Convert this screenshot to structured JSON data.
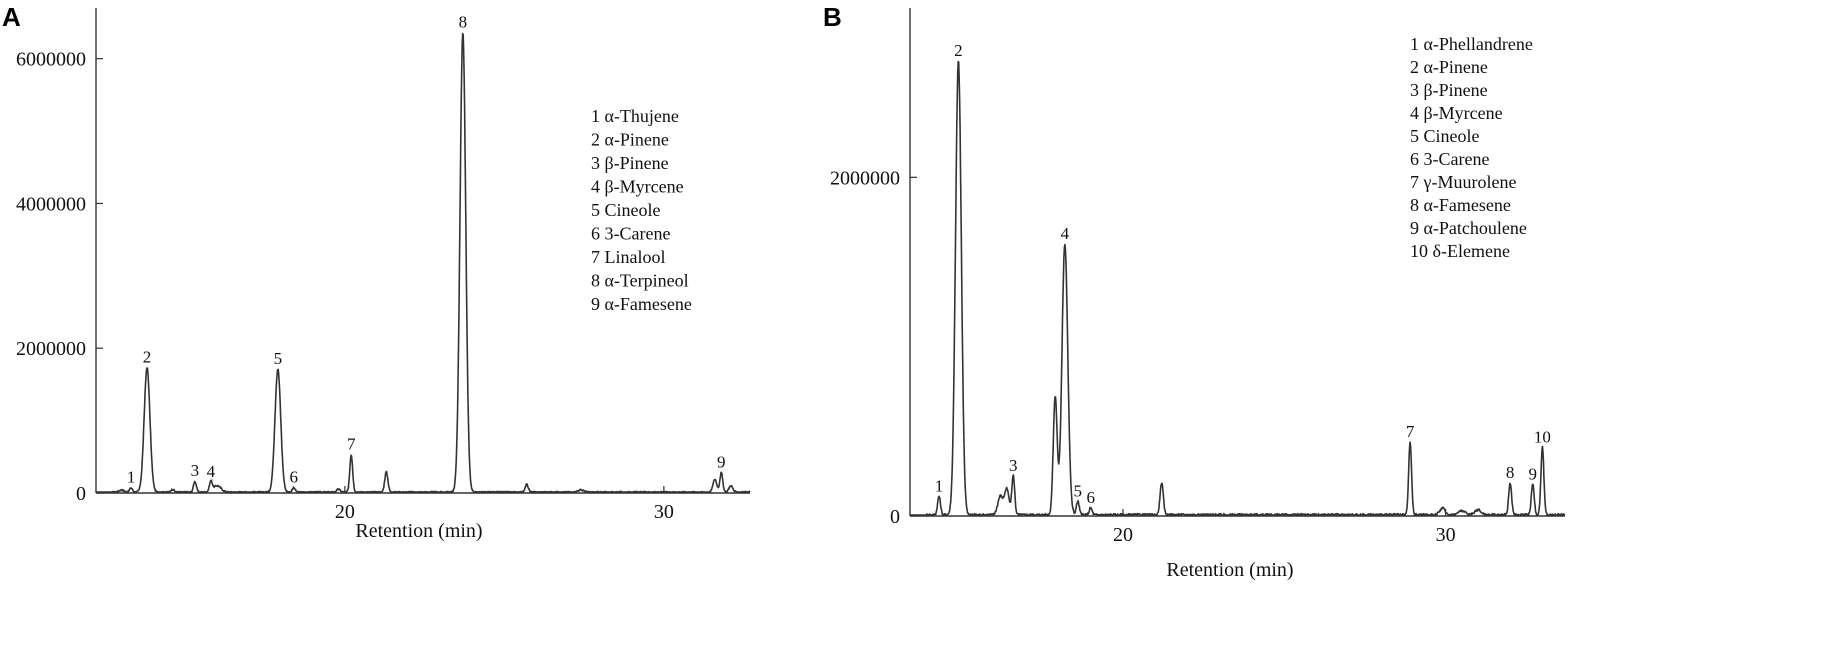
{
  "chart_data": [
    {
      "panel_letter": "A",
      "type": "line",
      "xlabel": "Retention (min)",
      "ylabel": "",
      "xlim": [
        12.2,
        32.7
      ],
      "ylim": [
        0,
        6700000
      ],
      "x_ticks": [
        20,
        30
      ],
      "y_ticks": [
        0,
        2000000,
        4000000,
        6000000
      ],
      "y_tick_labels": [
        "0",
        "2000000",
        "4000000",
        "6000000"
      ],
      "legend_placement": "top-right",
      "legend": [
        "1 α-Thujene",
        "2 α-Pinene",
        "3 β-Pinene",
        "4 β-Myrcene",
        "5 Cineole",
        "6 3-Carene",
        "7 Linalool",
        "8 α-Terpineol",
        "9 α-Famesene"
      ],
      "grid": false,
      "peaks": [
        {
          "label": "1",
          "x": 13.3,
          "y": 60000
        },
        {
          "label": "2",
          "x": 13.8,
          "y": 1720000
        },
        {
          "label": "3",
          "x": 15.3,
          "y": 150000
        },
        {
          "label": "4",
          "x": 15.8,
          "y": 140000
        },
        {
          "label": "5",
          "x": 17.9,
          "y": 1700000
        },
        {
          "label": "6",
          "x": 18.4,
          "y": 60000
        },
        {
          "label": "7",
          "x": 20.2,
          "y": 520000
        },
        {
          "label": "8",
          "x": 23.7,
          "y": 6350000
        },
        {
          "label": "9",
          "x": 31.8,
          "y": 270000
        }
      ]
    },
    {
      "panel_letter": "B",
      "type": "line",
      "xlabel": "Retention (min)",
      "ylabel": "",
      "xlim": [
        13.4,
        33.7
      ],
      "ylim": [
        0,
        3000000
      ],
      "x_ticks": [
        20,
        30
      ],
      "y_ticks": [
        0,
        2000000
      ],
      "y_tick_labels": [
        "0",
        "2000000"
      ],
      "legend_placement": "top-right",
      "legend": [
        "1 α-Phellandrene",
        "2 α-Pinene",
        "3 β-Pinene",
        "4 β-Myrcene",
        "5 Cineole",
        "6 3-Carene",
        "7 γ-Muurolene",
        "8 α-Famesene",
        "9 α-Patchoulene",
        "10 δ-Elemene"
      ],
      "grid": false,
      "peaks": [
        {
          "label": "1",
          "x": 14.3,
          "y": 110000
        },
        {
          "label": "2",
          "x": 14.9,
          "y": 2680000
        },
        {
          "label": "3",
          "x": 16.6,
          "y": 230000
        },
        {
          "label": "4",
          "x": 18.2,
          "y": 1600000
        },
        {
          "label": "5",
          "x": 18.6,
          "y": 80000
        },
        {
          "label": "6",
          "x": 19.0,
          "y": 40000
        },
        {
          "label": "7",
          "x": 28.9,
          "y": 430000
        },
        {
          "label": "8",
          "x": 32.0,
          "y": 190000
        },
        {
          "label": "9",
          "x": 32.7,
          "y": 180000
        },
        {
          "label": "10",
          "x": 33.0,
          "y": 400000
        }
      ]
    }
  ]
}
